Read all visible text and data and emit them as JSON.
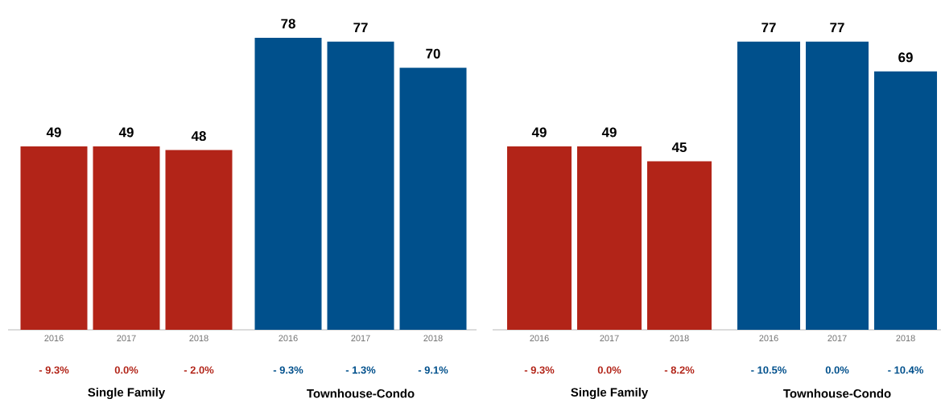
{
  "chart_data": [
    {
      "type": "bar",
      "categories": [
        "2016",
        "2017",
        "2018"
      ],
      "values": [
        49,
        49,
        48
      ],
      "color": "#b22418",
      "data_labels": true,
      "xlabel": "Single Family",
      "annotations": [
        "- 9.3%",
        "0.0%",
        "- 2.0%"
      ]
    },
    {
      "type": "bar",
      "categories": [
        "2016",
        "2017",
        "2018"
      ],
      "values": [
        78,
        77,
        70
      ],
      "color": "#00508c",
      "data_labels": true,
      "xlabel": "Townhouse-Condo",
      "annotations": [
        "- 9.3%",
        "- 1.3%",
        "- 9.1%"
      ]
    },
    {
      "type": "bar",
      "categories": [
        "2016",
        "2017",
        "2018"
      ],
      "values": [
        49,
        49,
        45
      ],
      "color": "#b22418",
      "data_labels": true,
      "xlabel": "Single Family",
      "annotations": [
        "- 9.3%",
        "0.0%",
        "- 8.2%"
      ]
    },
    {
      "type": "bar",
      "categories": [
        "2016",
        "2017",
        "2018"
      ],
      "values": [
        77,
        77,
        69
      ],
      "color": "#00508c",
      "data_labels": true,
      "xlabel": "Townhouse-Condo",
      "annotations": [
        "- 10.5%",
        "0.0%",
        "- 10.4%"
      ]
    }
  ]
}
